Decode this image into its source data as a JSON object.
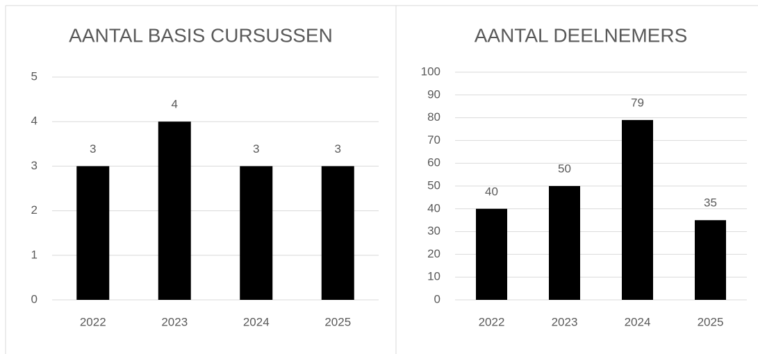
{
  "chart_data": [
    {
      "type": "bar",
      "title": "AANTAL BASIS CURSUSSEN",
      "categories": [
        "2022",
        "2023",
        "2024",
        "2025"
      ],
      "values": [
        3,
        4,
        3,
        3
      ],
      "color": "#000000",
      "ylim": [
        0,
        5
      ],
      "yticks": [
        0,
        1,
        2,
        3,
        4,
        5
      ],
      "grid": true
    },
    {
      "type": "bar",
      "title": "AANTAL DEELNEMERS",
      "categories": [
        "2022",
        "2023",
        "2024",
        "2025"
      ],
      "values": [
        40,
        50,
        79,
        35
      ],
      "color": "#000000",
      "ylim": [
        0,
        100
      ],
      "yticks": [
        0,
        10,
        20,
        30,
        40,
        50,
        60,
        70,
        80,
        90,
        100
      ],
      "grid": true
    }
  ]
}
